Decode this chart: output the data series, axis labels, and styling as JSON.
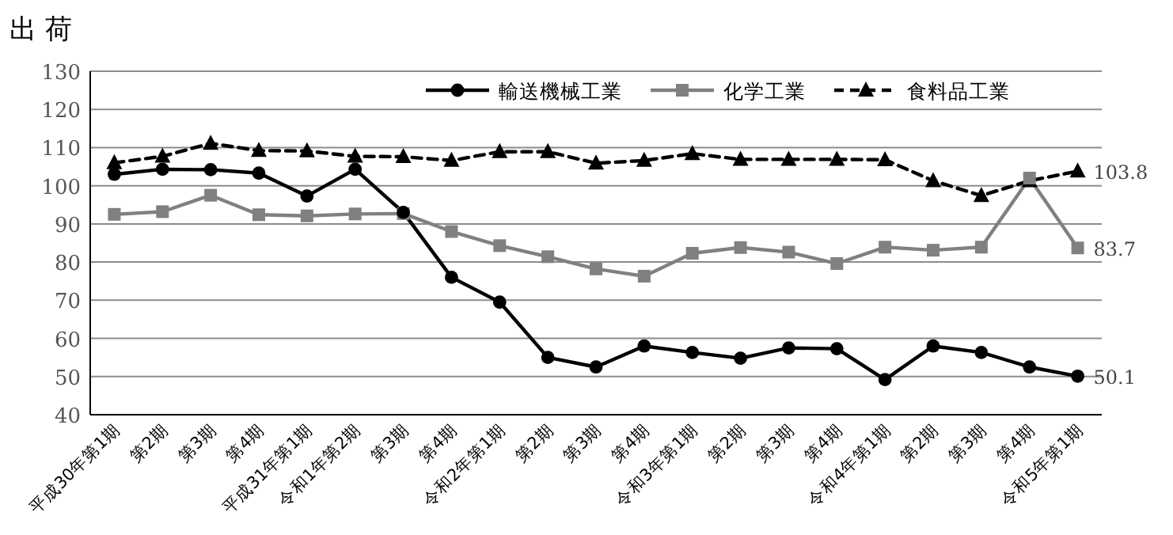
{
  "chart_data": {
    "type": "line",
    "title": "出 荷",
    "categories": [
      "平成30年第1期",
      "第2期",
      "第3期",
      "第4期",
      "平成31年第1期",
      "令和1年第2期",
      "第3期",
      "第4期",
      "令和2年第1期",
      "第2期",
      "第3期",
      "第4期",
      "令和3年第1期",
      "第2期",
      "第3期",
      "第4期",
      "令和4年第1期",
      "第2期",
      "第3期",
      "第4期",
      "令和5年第1期"
    ],
    "series": [
      {
        "name": "輸送機械工業",
        "color": "#000000",
        "marker": "circle",
        "line_style": "solid",
        "values": [
          103,
          104.3,
          104.2,
          103.3,
          97.3,
          104.3,
          93,
          76,
          69.5,
          55,
          52.5,
          58,
          56.3,
          54.8,
          57.5,
          57.3,
          49.2,
          58,
          56.3,
          52.5,
          50.1
        ],
        "value_labels": [
          null,
          null,
          null,
          null,
          null,
          null,
          null,
          null,
          null,
          null,
          null,
          null,
          null,
          null,
          null,
          null,
          null,
          null,
          null,
          null,
          "50.1"
        ]
      },
      {
        "name": "化学工業",
        "color": "#808080",
        "marker": "square",
        "line_style": "solid",
        "values": [
          92.5,
          93.2,
          97.5,
          92.4,
          92.1,
          92.6,
          92.7,
          88,
          84.3,
          81.4,
          78.2,
          76.3,
          82.3,
          83.8,
          82.6,
          79.6,
          83.9,
          83.1,
          83.9,
          102,
          83.7
        ],
        "value_labels": [
          null,
          null,
          null,
          null,
          null,
          null,
          null,
          null,
          null,
          null,
          null,
          null,
          null,
          null,
          null,
          null,
          null,
          null,
          null,
          null,
          "83.7"
        ]
      },
      {
        "name": "食料品工業",
        "color": "#000000",
        "marker": "triangle",
        "line_style": "dashed",
        "values": [
          106,
          107.7,
          111.1,
          109.2,
          109.1,
          107.7,
          107.6,
          106.6,
          108.9,
          108.9,
          105.9,
          106.6,
          108.4,
          106.9,
          106.9,
          106.9,
          106.8,
          101.3,
          97.4,
          101.3,
          103.8
        ],
        "value_labels": [
          null,
          null,
          null,
          null,
          null,
          null,
          null,
          null,
          null,
          null,
          null,
          null,
          null,
          null,
          null,
          null,
          null,
          null,
          null,
          null,
          "103.8"
        ]
      }
    ],
    "ylim": [
      40,
      130
    ],
    "yticks": [
      40,
      50,
      60,
      70,
      80,
      90,
      100,
      110,
      120,
      130
    ],
    "grid": "y",
    "legend": "top right"
  }
}
